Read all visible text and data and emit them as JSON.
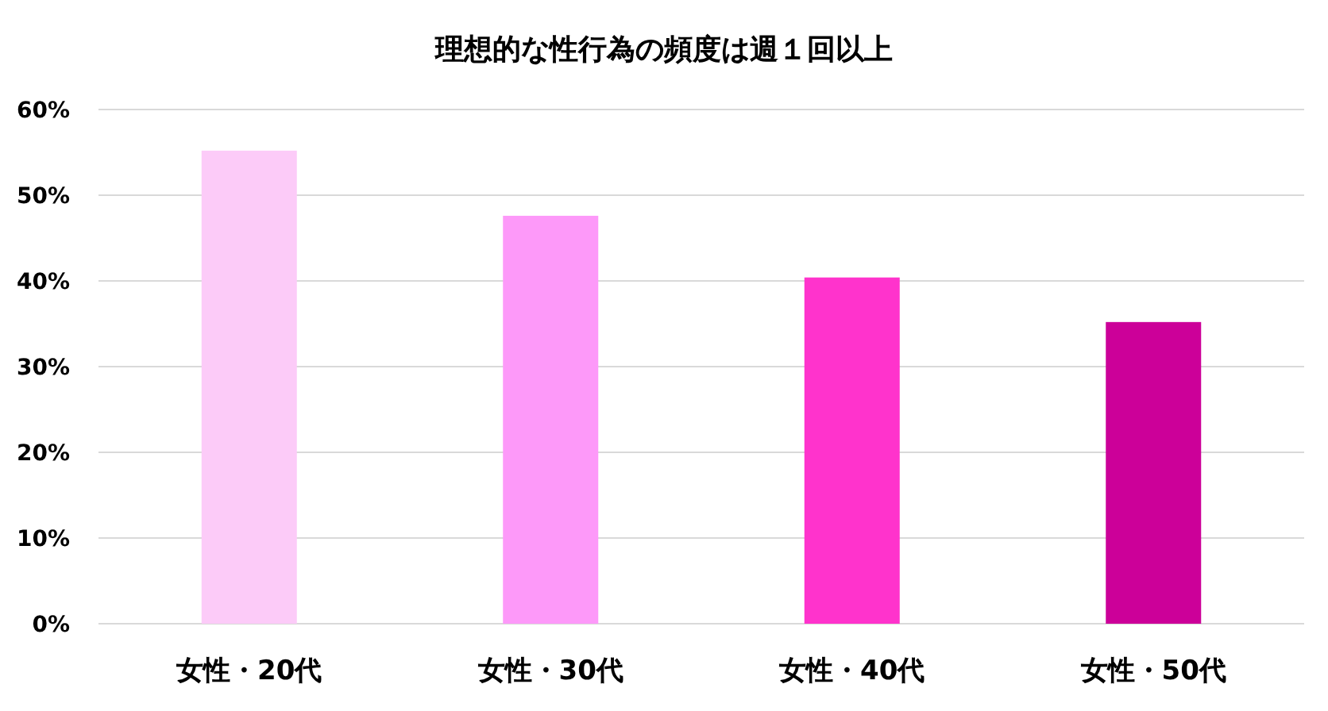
{
  "chart_data": {
    "type": "bar",
    "title": "理想的な性行為の頻度は週１回以上",
    "categories": [
      "女性・20代",
      "女性・30代",
      "女性・40代",
      "女性・50代"
    ],
    "values": [
      55.2,
      47.6,
      40.4,
      35.2
    ],
    "colors": [
      "#fccbf8",
      "#fd99f9",
      "#ff33cc",
      "#cc0099"
    ],
    "ylim": [
      0,
      60
    ],
    "yticks": [
      {
        "value": 0,
        "label": "0%"
      },
      {
        "value": 10,
        "label": "10%"
      },
      {
        "value": 20,
        "label": "20%"
      },
      {
        "value": 30,
        "label": "30%"
      },
      {
        "value": 40,
        "label": "40%"
      },
      {
        "value": 50,
        "label": "50%"
      },
      {
        "value": 60,
        "label": "60%"
      }
    ],
    "grid": "y"
  }
}
